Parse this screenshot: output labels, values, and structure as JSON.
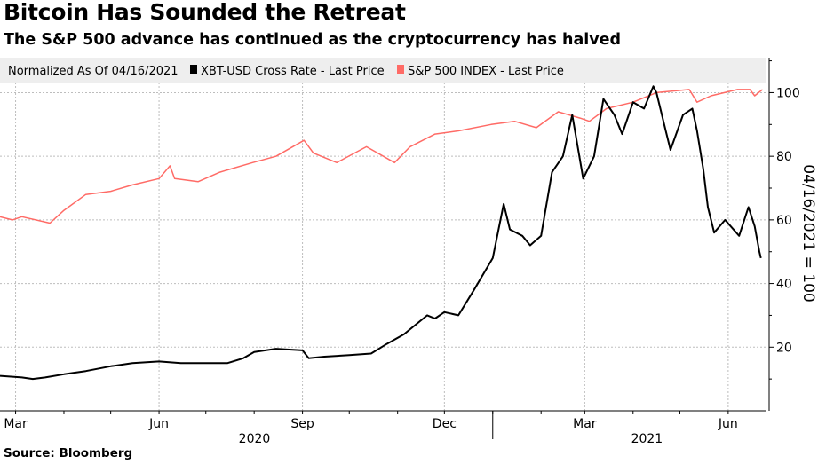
{
  "chart_data": {
    "type": "line",
    "title": "Bitcoin Has Sounded the Retreat",
    "subtitle": "The S&P 500 advance has continued as the cryptocurrency has halved",
    "ylabel": "04/16/2021 = 100",
    "ylim": [
      0,
      111
    ],
    "yticks": [
      20,
      40,
      60,
      80,
      100
    ],
    "x_tick_labels": [
      "Mar",
      "Jun",
      "Sep",
      "Dec",
      "Mar",
      "Jun"
    ],
    "x_tick_dates": [
      "2020-03-01",
      "2020-06-01",
      "2020-09-01",
      "2020-12-01",
      "2021-03-01",
      "2021-06-01"
    ],
    "x_year_labels": [
      "2020",
      "2021"
    ],
    "xlim": [
      "2020-02-20",
      "2021-06-25"
    ],
    "grid": true,
    "legend_position": "top",
    "legend_title": "Normalized As Of 04/16/2021",
    "series": [
      {
        "name": "XBT-USD Cross Rate - Last Price",
        "color": "#000000",
        "points": [
          [
            "2020-02-20",
            11
          ],
          [
            "2020-03-05",
            10.5
          ],
          [
            "2020-03-12",
            10
          ],
          [
            "2020-03-20",
            10.5
          ],
          [
            "2020-04-01",
            11.5
          ],
          [
            "2020-04-15",
            12.5
          ],
          [
            "2020-05-01",
            14
          ],
          [
            "2020-05-15",
            15
          ],
          [
            "2020-06-01",
            15.5
          ],
          [
            "2020-06-15",
            15
          ],
          [
            "2020-07-01",
            15
          ],
          [
            "2020-07-15",
            15
          ],
          [
            "2020-07-25",
            16.5
          ],
          [
            "2020-08-01",
            18.5
          ],
          [
            "2020-08-15",
            19.5
          ],
          [
            "2020-09-01",
            19
          ],
          [
            "2020-09-05",
            16.5
          ],
          [
            "2020-09-15",
            17
          ],
          [
            "2020-10-01",
            17.5
          ],
          [
            "2020-10-15",
            18
          ],
          [
            "2020-10-25",
            21
          ],
          [
            "2020-11-05",
            24
          ],
          [
            "2020-11-20",
            30
          ],
          [
            "2020-11-25",
            29
          ],
          [
            "2020-12-01",
            31
          ],
          [
            "2020-12-10",
            30
          ],
          [
            "2020-12-20",
            38
          ],
          [
            "2021-01-01",
            48
          ],
          [
            "2021-01-08",
            65
          ],
          [
            "2021-01-12",
            57
          ],
          [
            "2021-01-20",
            55
          ],
          [
            "2021-01-25",
            52
          ],
          [
            "2021-02-01",
            55
          ],
          [
            "2021-02-08",
            75
          ],
          [
            "2021-02-15",
            80
          ],
          [
            "2021-02-21",
            93
          ],
          [
            "2021-02-28",
            73
          ],
          [
            "2021-03-07",
            80
          ],
          [
            "2021-03-13",
            98
          ],
          [
            "2021-03-20",
            93
          ],
          [
            "2021-03-25",
            87
          ],
          [
            "2021-04-01",
            97
          ],
          [
            "2021-04-08",
            95
          ],
          [
            "2021-04-14",
            102
          ],
          [
            "2021-04-16",
            100
          ],
          [
            "2021-04-22",
            88
          ],
          [
            "2021-04-25",
            82
          ],
          [
            "2021-05-03",
            93
          ],
          [
            "2021-05-09",
            95
          ],
          [
            "2021-05-12",
            88
          ],
          [
            "2021-05-16",
            76
          ],
          [
            "2021-05-19",
            64
          ],
          [
            "2021-05-23",
            56
          ],
          [
            "2021-05-30",
            60
          ],
          [
            "2021-06-08",
            55
          ],
          [
            "2021-06-14",
            64
          ],
          [
            "2021-06-18",
            58
          ],
          [
            "2021-06-21",
            50
          ],
          [
            "2021-06-22",
            48
          ]
        ]
      },
      {
        "name": "S&P 500 INDEX - Last Price",
        "color": "#ff6b66",
        "points": [
          [
            "2020-02-20",
            61
          ],
          [
            "2020-02-28",
            60
          ],
          [
            "2020-03-05",
            61
          ],
          [
            "2020-03-23",
            59
          ],
          [
            "2020-04-01",
            63
          ],
          [
            "2020-04-15",
            68
          ],
          [
            "2020-05-01",
            69
          ],
          [
            "2020-05-15",
            71
          ],
          [
            "2020-06-01",
            73
          ],
          [
            "2020-06-08",
            77
          ],
          [
            "2020-06-11",
            73
          ],
          [
            "2020-06-26",
            72
          ],
          [
            "2020-07-10",
            75
          ],
          [
            "2020-07-31",
            78
          ],
          [
            "2020-08-15",
            80
          ],
          [
            "2020-09-02",
            85
          ],
          [
            "2020-09-08",
            81
          ],
          [
            "2020-09-23",
            78
          ],
          [
            "2020-10-12",
            83
          ],
          [
            "2020-10-30",
            78
          ],
          [
            "2020-11-09",
            83
          ],
          [
            "2020-11-25",
            87
          ],
          [
            "2020-12-10",
            88
          ],
          [
            "2020-12-31",
            90
          ],
          [
            "2021-01-15",
            91
          ],
          [
            "2021-01-29",
            89
          ],
          [
            "2021-02-12",
            94
          ],
          [
            "2021-02-26",
            92
          ],
          [
            "2021-03-04",
            91
          ],
          [
            "2021-03-15",
            95
          ],
          [
            "2021-04-01",
            97
          ],
          [
            "2021-04-16",
            100
          ],
          [
            "2021-05-07",
            101
          ],
          [
            "2021-05-12",
            97
          ],
          [
            "2021-05-21",
            99
          ],
          [
            "2021-06-07",
            101
          ],
          [
            "2021-06-15",
            101
          ],
          [
            "2021-06-18",
            99
          ],
          [
            "2021-06-23",
            101
          ]
        ]
      }
    ]
  },
  "footer": {
    "source": "Source: Bloomberg"
  }
}
